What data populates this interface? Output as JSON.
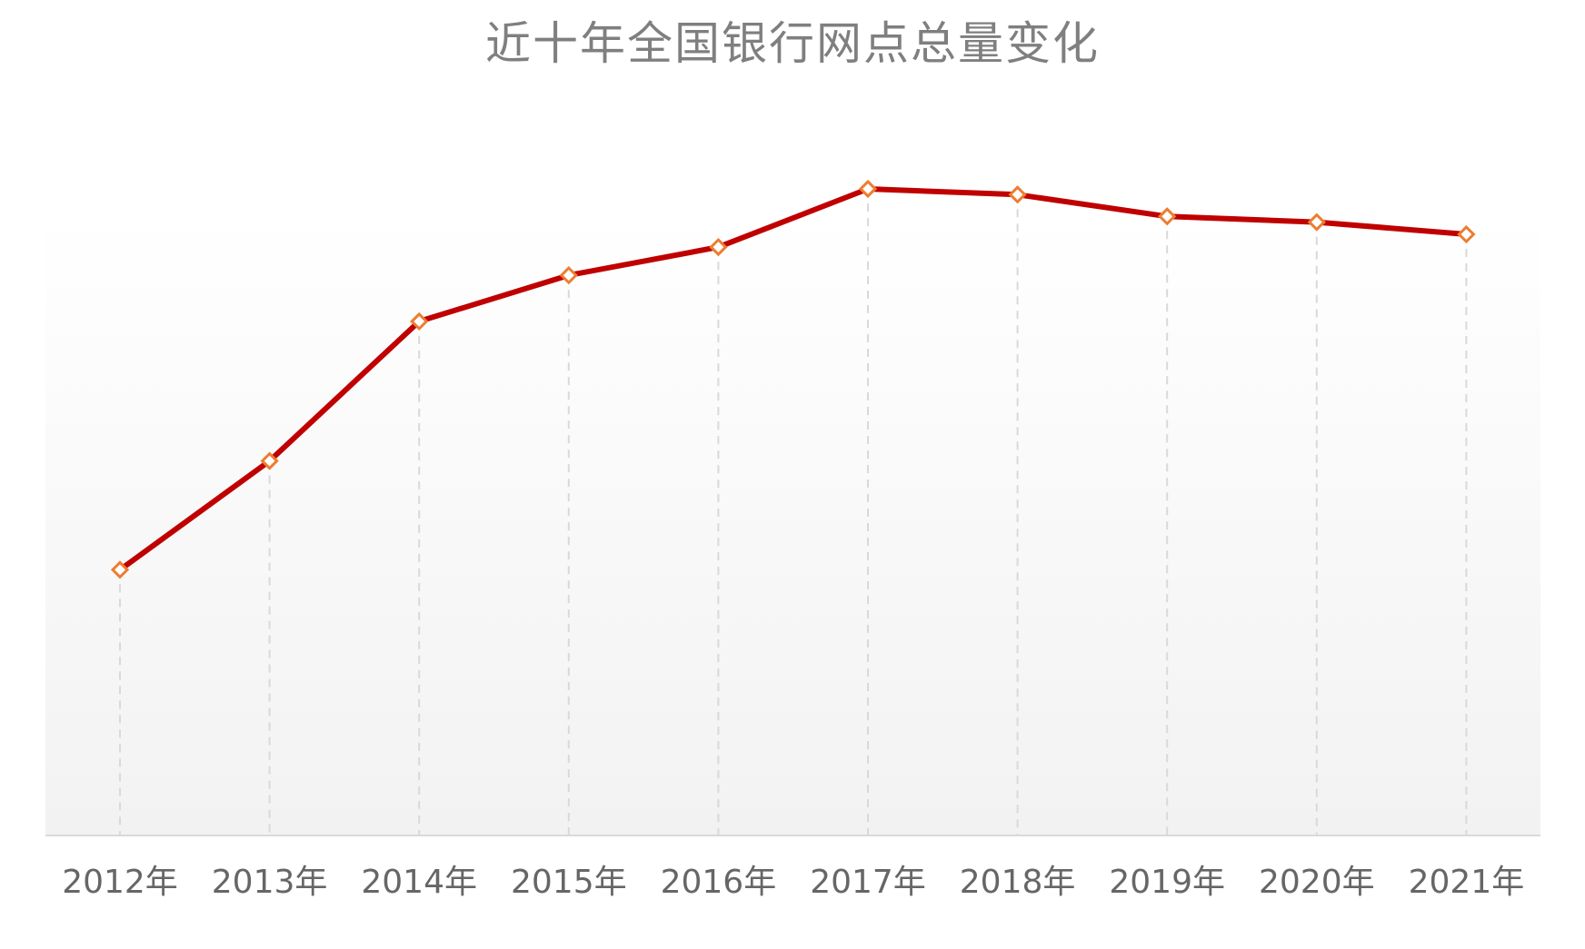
{
  "chart_data": {
    "type": "line",
    "title": "近十年全国银行网点总量变化",
    "xlabel": "",
    "ylabel": "",
    "categories": [
      "2012年",
      "2013年",
      "2014年",
      "2015年",
      "2016年",
      "2017年",
      "2018年",
      "2019年",
      "2020年",
      "2021年"
    ],
    "series": [
      {
        "values": [
          41.5,
          58.5,
          80.3,
          87.5,
          91.9,
          101.0,
          100.1,
          96.7,
          95.8,
          93.9
        ]
      }
    ],
    "ylim": [
      0,
      100
    ],
    "y_axis_visible": false,
    "grid": false,
    "drop_lines": true,
    "marker": "diamond",
    "colors": {
      "line": "#C00000",
      "marker_border": "#ED7D31",
      "marker_fill": "#FFFFFF",
      "drop_line": "#D9D9D9",
      "axis": "#D9D9D9",
      "title": "#7F7F7F",
      "tick_label": "#666666"
    }
  }
}
